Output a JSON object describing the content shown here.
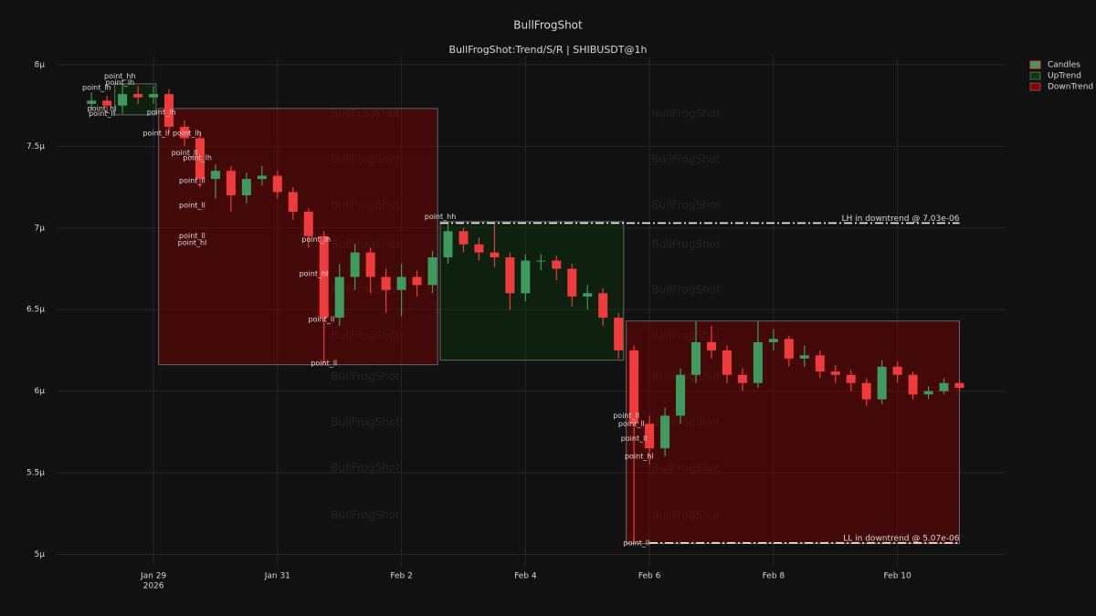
{
  "chart_data": {
    "type": "candlestick",
    "title": "BullFrogShot",
    "subtitle": "BullFrogShot:Trend/S/R | SHIBUSDT@1h",
    "watermark": "BullFrogShot",
    "name": "Candles",
    "up_color": "#3f9a5e",
    "down_color": "#ef3b3b",
    "x": [
      "2026-01-28T00:00",
      "2026-01-28T06:00",
      "2026-01-28T12:00",
      "2026-01-28T18:00",
      "2026-01-29T00:00",
      "2026-01-29T06:00",
      "2026-01-29T12:00",
      "2026-01-29T18:00",
      "2026-01-30T00:00",
      "2026-01-30T06:00",
      "2026-01-30T12:00",
      "2026-01-30T18:00",
      "2026-01-31T00:00",
      "2026-01-31T06:00",
      "2026-01-31T12:00",
      "2026-01-31T18:00",
      "2026-02-01T00:00",
      "2026-02-01T06:00",
      "2026-02-01T12:00",
      "2026-02-01T18:00",
      "2026-02-02T00:00",
      "2026-02-02T06:00",
      "2026-02-02T12:00",
      "2026-02-02T18:00",
      "2026-02-03T00:00",
      "2026-02-03T06:00",
      "2026-02-03T12:00",
      "2026-02-03T18:00",
      "2026-02-04T00:00",
      "2026-02-04T06:00",
      "2026-02-04T12:00",
      "2026-02-04T18:00",
      "2026-02-05T00:00",
      "2026-02-05T06:00",
      "2026-02-05T12:00",
      "2026-02-05T18:00",
      "2026-02-06T00:00",
      "2026-02-06T06:00",
      "2026-02-06T12:00",
      "2026-02-06T18:00",
      "2026-02-07T00:00",
      "2026-02-07T06:00",
      "2026-02-07T12:00",
      "2026-02-07T18:00",
      "2026-02-08T00:00",
      "2026-02-08T06:00",
      "2026-02-08T12:00",
      "2026-02-08T18:00",
      "2026-02-09T00:00",
      "2026-02-09T06:00",
      "2026-02-09T12:00",
      "2026-02-09T18:00",
      "2026-02-10T00:00",
      "2026-02-10T06:00",
      "2026-02-10T12:00",
      "2026-02-10T18:00",
      "2026-02-11T00:00"
    ],
    "open": [
      7.76e-06,
      7.78e-06,
      7.75e-06,
      7.82e-06,
      7.8e-06,
      7.82e-06,
      7.62e-06,
      7.55e-06,
      7.3e-06,
      7.35e-06,
      7.2e-06,
      7.3e-06,
      7.32e-06,
      7.22e-06,
      7.1e-06,
      6.95e-06,
      6.45e-06,
      6.7e-06,
      6.85e-06,
      6.7e-06,
      6.62e-06,
      6.7e-06,
      6.65e-06,
      6.82e-06,
      6.98e-06,
      6.9e-06,
      6.85e-06,
      6.82e-06,
      6.6e-06,
      6.8e-06,
      6.8e-06,
      6.75e-06,
      6.58e-06,
      6.6e-06,
      6.45e-06,
      6.25e-06,
      5.8e-06,
      5.65e-06,
      5.85e-06,
      6.1e-06,
      6.3e-06,
      6.25e-06,
      6.1e-06,
      6.05e-06,
      6.3e-06,
      6.32e-06,
      6.2e-06,
      6.22e-06,
      6.12e-06,
      6.1e-06,
      6.05e-06,
      5.95e-06,
      6.15e-06,
      6.1e-06,
      5.98e-06,
      6e-06,
      6.05e-06
    ],
    "high": [
      7.83e-06,
      7.81e-06,
      7.88e-06,
      7.87e-06,
      7.87e-06,
      7.85e-06,
      7.66e-06,
      7.58e-06,
      7.39e-06,
      7.38e-06,
      7.34e-06,
      7.38e-06,
      7.35e-06,
      7.25e-06,
      7.12e-06,
      6.98e-06,
      6.78e-06,
      6.9e-06,
      6.88e-06,
      6.75e-06,
      6.78e-06,
      6.74e-06,
      6.86e-06,
      7.03e-06,
      7e-06,
      6.94e-06,
      7.02e-06,
      6.85e-06,
      6.84e-06,
      6.84e-06,
      6.83e-06,
      6.78e-06,
      6.65e-06,
      6.63e-06,
      6.48e-06,
      6.28e-06,
      5.85e-06,
      5.9e-06,
      6.14e-06,
      6.43e-06,
      6.4e-06,
      6.28e-06,
      6.14e-06,
      6.43e-06,
      6.38e-06,
      6.34e-06,
      6.28e-06,
      6.25e-06,
      6.16e-06,
      6.13e-06,
      6.08e-06,
      6.19e-06,
      6.18e-06,
      6.12e-06,
      6.03e-06,
      6.08e-06,
      6.07e-06
    ],
    "low": [
      7.72e-06,
      7.71e-06,
      7.7e-06,
      7.76e-06,
      7.76e-06,
      7.58e-06,
      7.5e-06,
      7.25e-06,
      7.18e-06,
      7.1e-06,
      7.15e-06,
      7.26e-06,
      7.18e-06,
      7.05e-06,
      6.88e-06,
      6.17e-06,
      6.4e-06,
      6.62e-06,
      6.6e-06,
      6.48e-06,
      6.46e-06,
      6.58e-06,
      6.6e-06,
      6.78e-06,
      6.85e-06,
      6.8e-06,
      6.76e-06,
      6.5e-06,
      6.55e-06,
      6.74e-06,
      6.68e-06,
      6.52e-06,
      6.5e-06,
      6.4e-06,
      6.2e-06,
      5.07e-06,
      5.55e-06,
      5.6e-06,
      5.8e-06,
      6.05e-06,
      6.2e-06,
      6.05e-06,
      6e-06,
      6.02e-06,
      6.25e-06,
      6.15e-06,
      6.15e-06,
      6.08e-06,
      6.05e-06,
      6e-06,
      5.91e-06,
      5.92e-06,
      6.05e-06,
      5.95e-06,
      5.95e-06,
      5.98e-06,
      6e-06
    ],
    "close": [
      7.78e-06,
      7.75e-06,
      7.82e-06,
      7.8e-06,
      7.82e-06,
      7.62e-06,
      7.55e-06,
      7.3e-06,
      7.35e-06,
      7.2e-06,
      7.3e-06,
      7.32e-06,
      7.22e-06,
      7.1e-06,
      6.95e-06,
      6.45e-06,
      6.7e-06,
      6.85e-06,
      6.7e-06,
      6.62e-06,
      6.7e-06,
      6.65e-06,
      6.82e-06,
      6.98e-06,
      6.9e-06,
      6.85e-06,
      6.82e-06,
      6.6e-06,
      6.8e-06,
      6.8e-06,
      6.75e-06,
      6.58e-06,
      6.6e-06,
      6.45e-06,
      6.25e-06,
      5.8e-06,
      5.65e-06,
      5.85e-06,
      6.1e-06,
      6.3e-06,
      6.25e-06,
      6.1e-06,
      6.05e-06,
      6.3e-06,
      6.32e-06,
      6.2e-06,
      6.22e-06,
      6.12e-06,
      6.1e-06,
      6.05e-06,
      5.95e-06,
      6.15e-06,
      6.1e-06,
      5.98e-06,
      6e-06,
      6.05e-06,
      6.02e-06
    ],
    "xlim": [
      "2026-01-27T10:30",
      "2026-02-11T17:30"
    ],
    "xticks": [
      {
        "value": "2026-01-29T00:00",
        "label": "Jan 29"
      },
      {
        "value": "2026-01-31T00:00",
        "label": "Jan 31"
      },
      {
        "value": "2026-02-02T00:00",
        "label": "Feb 2"
      },
      {
        "value": "2026-02-04T00:00",
        "label": "Feb 4"
      },
      {
        "value": "2026-02-06T00:00",
        "label": "Feb 6"
      },
      {
        "value": "2026-02-08T00:00",
        "label": "Feb 8"
      },
      {
        "value": "2026-02-10T00:00",
        "label": "Feb 10"
      }
    ],
    "x_year_label": "2026",
    "ylim": [
      4.93e-06,
      8.05e-06
    ],
    "yticks": [
      {
        "value": 5e-06,
        "label": "5μ"
      },
      {
        "value": 5.5e-06,
        "label": "5.5μ"
      },
      {
        "value": 6e-06,
        "label": "6μ"
      },
      {
        "value": 6.5e-06,
        "label": "6.5μ"
      },
      {
        "value": 7e-06,
        "label": "7μ"
      },
      {
        "value": 7.5e-06,
        "label": "7.5μ"
      },
      {
        "value": 8e-06,
        "label": "8μ"
      }
    ],
    "grid": true,
    "trends": [
      {
        "name": "UpTrend",
        "color": "#0d3a0d",
        "zones": [
          {
            "x0": "2026-01-28T09:00",
            "x1": "2026-01-29T01:00",
            "y0": 7.693e-06,
            "y1": 7.883e-06
          },
          {
            "x0": "2026-02-02T15:00",
            "x1": "2026-02-05T14:00",
            "y0": 6.19e-06,
            "y1": 7.039e-06
          }
        ]
      },
      {
        "name": "DownTrend",
        "color": "#8b0000",
        "zones": [
          {
            "x0": "2026-01-29T02:00",
            "x1": "2026-02-02T14:00",
            "y0": 6.162e-06,
            "y1": 7.732e-06
          },
          {
            "x0": "2026-02-05T15:00",
            "x1": "2026-02-11T00:00",
            "y0": 5.067e-06,
            "y1": 6.43e-06
          }
        ]
      }
    ],
    "levels": [
      {
        "label": "LH in downtrend @ 7.03e-06",
        "value": 7.03e-06,
        "x0": "2026-02-02T15:00",
        "x1": "2026-02-11T00:00"
      },
      {
        "label": "LL in downtrend @ 5.07e-06",
        "value": 5.07e-06,
        "x0": "2026-02-06T00:00",
        "x1": "2026-02-11T00:00"
      }
    ],
    "annotations": [
      {
        "text": "point_lh",
        "x": "2026-01-28T02:00",
        "y": 7.86e-06
      },
      {
        "text": "point_hl",
        "x": "2026-01-28T04:00",
        "y": 7.73e-06
      },
      {
        "text": "point_ll",
        "x": "2026-01-28T04:00",
        "y": 7.7e-06
      },
      {
        "text": "point_hh",
        "x": "2026-01-28T11:00",
        "y": 7.93e-06
      },
      {
        "text": "point_lh",
        "x": "2026-01-28T11:00",
        "y": 7.89e-06
      },
      {
        "text": "point_lh",
        "x": "2026-01-29T03:00",
        "y": 7.71e-06
      },
      {
        "text": "point_ll",
        "x": "2026-01-29T01:00",
        "y": 7.58e-06
      },
      {
        "text": "point_lh",
        "x": "2026-01-29T13:00",
        "y": 7.58e-06
      },
      {
        "text": "point_ll",
        "x": "2026-01-29T12:00",
        "y": 7.46e-06
      },
      {
        "text": "point_lh",
        "x": "2026-01-29T17:00",
        "y": 7.43e-06
      },
      {
        "text": "point_ll",
        "x": "2026-01-29T15:00",
        "y": 7.29e-06
      },
      {
        "text": "point_ll",
        "x": "2026-01-29T15:00",
        "y": 7.14e-06
      },
      {
        "text": "point_ll",
        "x": "2026-01-29T15:00",
        "y": 6.95e-06
      },
      {
        "text": "point_hl",
        "x": "2026-01-29T15:00",
        "y": 6.91e-06
      },
      {
        "text": "point_lh",
        "x": "2026-01-31T15:00",
        "y": 6.93e-06
      },
      {
        "text": "point_hl",
        "x": "2026-01-31T14:00",
        "y": 6.72e-06
      },
      {
        "text": "point_ll",
        "x": "2026-01-31T17:00",
        "y": 6.44e-06
      },
      {
        "text": "point_ll",
        "x": "2026-01-31T18:00",
        "y": 6.17e-06
      },
      {
        "text": "point_hh",
        "x": "2026-02-02T15:00",
        "y": 7.07e-06
      },
      {
        "text": "point_ll",
        "x": "2026-02-05T15:00",
        "y": 5.85e-06
      },
      {
        "text": "point_ll",
        "x": "2026-02-05T17:00",
        "y": 5.8e-06
      },
      {
        "text": "point_ll",
        "x": "2026-02-05T18:00",
        "y": 5.71e-06
      },
      {
        "text": "point_hl",
        "x": "2026-02-05T20:00",
        "y": 5.6e-06
      },
      {
        "text": "point_ll",
        "x": "2026-02-05T19:00",
        "y": 5.07e-06
      }
    ]
  }
}
